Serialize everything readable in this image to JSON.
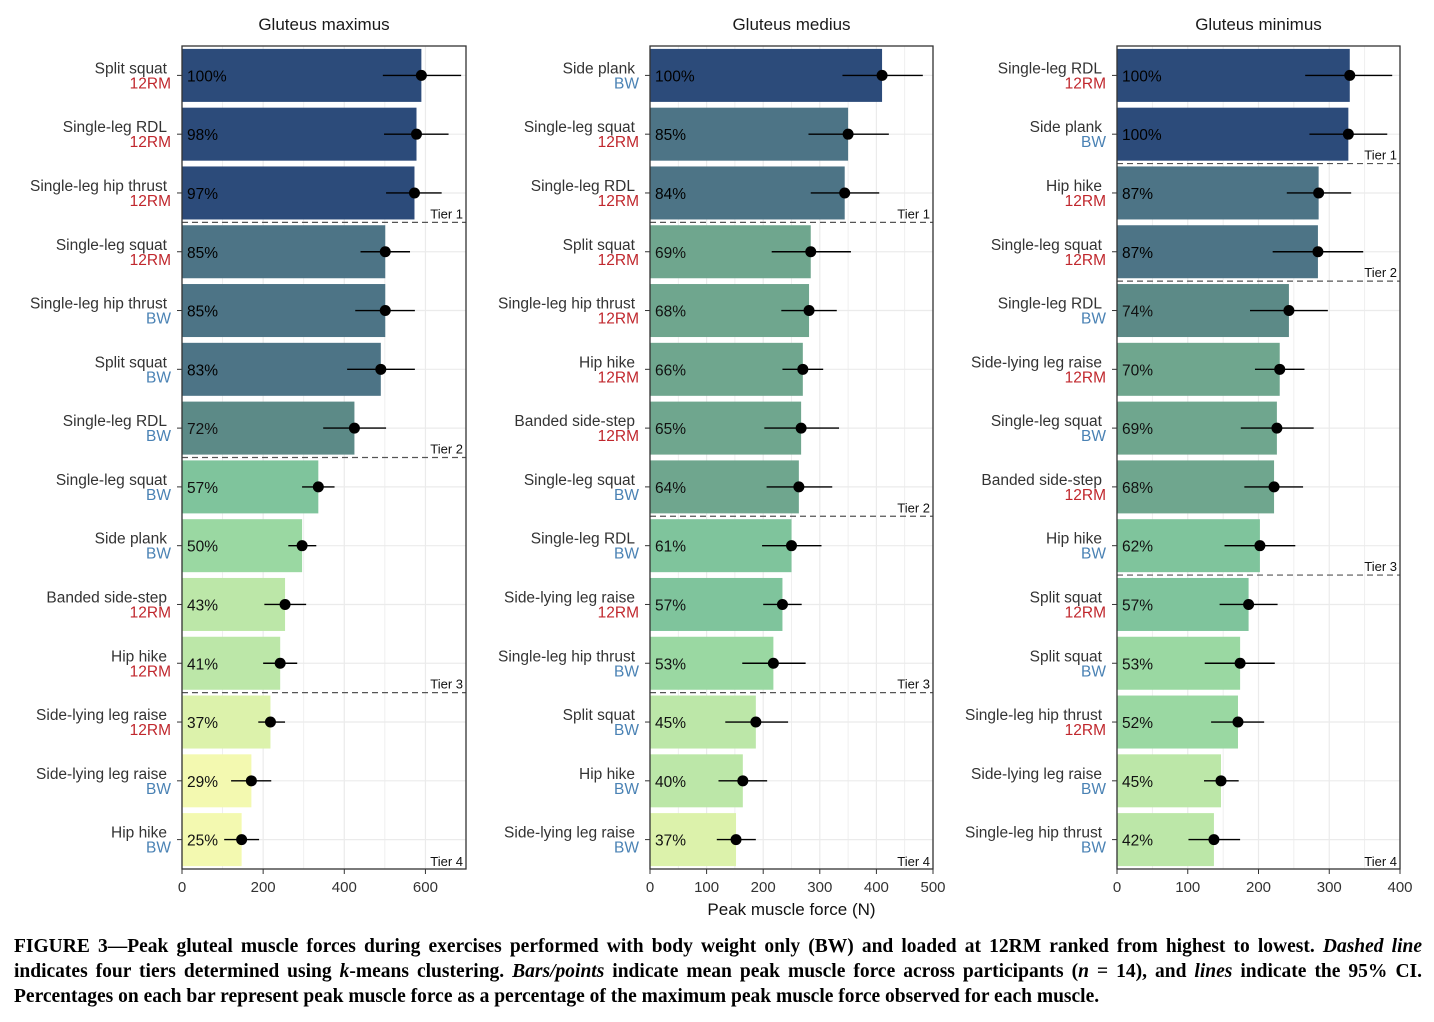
{
  "chart_data": [
    {
      "type": "bar",
      "title": "Gluteus maximus",
      "xlim": [
        0,
        700
      ],
      "xticks": [
        0,
        200,
        400,
        600
      ],
      "grid": true,
      "rows": [
        {
          "exercise": "Split squat",
          "load": "12RM",
          "mean": 590,
          "ci_low": 495,
          "ci_high": 688,
          "pct": "100%",
          "tier": 1
        },
        {
          "exercise": "Single-leg RDL",
          "load": "12RM",
          "mean": 578,
          "ci_low": 498,
          "ci_high": 657,
          "pct": "98%",
          "tier": 1
        },
        {
          "exercise": "Single-leg hip thrust",
          "load": "12RM",
          "mean": 573,
          "ci_low": 503,
          "ci_high": 640,
          "pct": "97%",
          "tier": 1
        },
        {
          "exercise": "Single-leg squat",
          "load": "12RM",
          "mean": 501,
          "ci_low": 440,
          "ci_high": 562,
          "pct": "85%",
          "tier": 2
        },
        {
          "exercise": "Single-leg hip thrust",
          "load": "BW",
          "mean": 501,
          "ci_low": 427,
          "ci_high": 574,
          "pct": "85%",
          "tier": 2
        },
        {
          "exercise": "Split squat",
          "load": "BW",
          "mean": 490,
          "ci_low": 407,
          "ci_high": 574,
          "pct": "83%",
          "tier": 2
        },
        {
          "exercise": "Single-leg RDL",
          "load": "BW",
          "mean": 425,
          "ci_low": 348,
          "ci_high": 503,
          "pct": "72%",
          "tier": 2
        },
        {
          "exercise": "Single-leg squat",
          "load": "BW",
          "mean": 336,
          "ci_low": 296,
          "ci_high": 376,
          "pct": "57%",
          "tier": 3
        },
        {
          "exercise": "Side plank",
          "load": "BW",
          "mean": 296,
          "ci_low": 262,
          "ci_high": 331,
          "pct": "50%",
          "tier": 3
        },
        {
          "exercise": "Banded side-step",
          "load": "12RM",
          "mean": 254,
          "ci_low": 203,
          "ci_high": 306,
          "pct": "43%",
          "tier": 3
        },
        {
          "exercise": "Hip hike",
          "load": "12RM",
          "mean": 242,
          "ci_low": 200,
          "ci_high": 284,
          "pct": "41%",
          "tier": 3
        },
        {
          "exercise": "Side-lying leg raise",
          "load": "12RM",
          "mean": 218,
          "ci_low": 188,
          "ci_high": 254,
          "pct": "37%",
          "tier": 4
        },
        {
          "exercise": "Side-lying leg raise",
          "load": "BW",
          "mean": 171,
          "ci_low": 121,
          "ci_high": 220,
          "pct": "29%",
          "tier": 4
        },
        {
          "exercise": "Hip hike",
          "load": "BW",
          "mean": 147,
          "ci_low": 104,
          "ci_high": 190,
          "pct": "25%",
          "tier": 4
        }
      ],
      "tier_labels": [
        "Tier 1",
        "Tier 2",
        "Tier 3",
        "Tier 4"
      ],
      "tier_breaks_after_row": [
        2,
        6,
        10
      ]
    },
    {
      "type": "bar",
      "title": "Gluteus medius",
      "xlabel": "Peak muscle force (N)",
      "xlim": [
        0,
        500
      ],
      "xticks": [
        0,
        100,
        200,
        300,
        400,
        500
      ],
      "grid": true,
      "rows": [
        {
          "exercise": "Side plank",
          "load": "BW",
          "mean": 410,
          "ci_low": 340,
          "ci_high": 482,
          "pct": "100%",
          "tier": 1
        },
        {
          "exercise": "Single-leg squat",
          "load": "12RM",
          "mean": 350,
          "ci_low": 280,
          "ci_high": 422,
          "pct": "85%",
          "tier": 1
        },
        {
          "exercise": "Single-leg RDL",
          "load": "12RM",
          "mean": 344,
          "ci_low": 284,
          "ci_high": 405,
          "pct": "84%",
          "tier": 1
        },
        {
          "exercise": "Split squat",
          "load": "12RM",
          "mean": 284,
          "ci_low": 215,
          "ci_high": 355,
          "pct": "69%",
          "tier": 2
        },
        {
          "exercise": "Single-leg hip thrust",
          "load": "12RM",
          "mean": 281,
          "ci_low": 232,
          "ci_high": 330,
          "pct": "68%",
          "tier": 2
        },
        {
          "exercise": "Hip hike",
          "load": "12RM",
          "mean": 270,
          "ci_low": 234,
          "ci_high": 306,
          "pct": "66%",
          "tier": 2
        },
        {
          "exercise": "Banded side-step",
          "load": "12RM",
          "mean": 267,
          "ci_low": 202,
          "ci_high": 334,
          "pct": "65%",
          "tier": 2
        },
        {
          "exercise": "Single-leg squat",
          "load": "BW",
          "mean": 263,
          "ci_low": 206,
          "ci_high": 322,
          "pct": "64%",
          "tier": 2
        },
        {
          "exercise": "Single-leg RDL",
          "load": "BW",
          "mean": 250,
          "ci_low": 198,
          "ci_high": 303,
          "pct": "61%",
          "tier": 3
        },
        {
          "exercise": "Side-lying leg raise",
          "load": "12RM",
          "mean": 234,
          "ci_low": 200,
          "ci_high": 268,
          "pct": "57%",
          "tier": 3
        },
        {
          "exercise": "Single-leg hip thrust",
          "load": "BW",
          "mean": 218,
          "ci_low": 163,
          "ci_high": 275,
          "pct": "53%",
          "tier": 3
        },
        {
          "exercise": "Split squat",
          "load": "BW",
          "mean": 187,
          "ci_low": 133,
          "ci_high": 244,
          "pct": "45%",
          "tier": 4
        },
        {
          "exercise": "Hip hike",
          "load": "BW",
          "mean": 164,
          "ci_low": 121,
          "ci_high": 207,
          "pct": "40%",
          "tier": 4
        },
        {
          "exercise": "Side-lying leg raise",
          "load": "BW",
          "mean": 152,
          "ci_low": 118,
          "ci_high": 187,
          "pct": "37%",
          "tier": 4
        }
      ],
      "tier_labels": [
        "Tier 1",
        "Tier 2",
        "Tier 3",
        "Tier 4"
      ],
      "tier_breaks_after_row": [
        2,
        7,
        10
      ]
    },
    {
      "type": "bar",
      "title": "Gluteus minimus",
      "xlim": [
        0,
        400
      ],
      "xticks": [
        0,
        100,
        200,
        300,
        400
      ],
      "grid": true,
      "rows": [
        {
          "exercise": "Single-leg RDL",
          "load": "12RM",
          "mean": 329,
          "ci_low": 266,
          "ci_high": 389,
          "pct": "100%",
          "tier": 1
        },
        {
          "exercise": "Side plank",
          "load": "BW",
          "mean": 327,
          "ci_low": 272,
          "ci_high": 382,
          "pct": "100%",
          "tier": 1
        },
        {
          "exercise": "Hip hike",
          "load": "12RM",
          "mean": 285,
          "ci_low": 240,
          "ci_high": 331,
          "pct": "87%",
          "tier": 2
        },
        {
          "exercise": "Single-leg squat",
          "load": "12RM",
          "mean": 284,
          "ci_low": 220,
          "ci_high": 348,
          "pct": "87%",
          "tier": 2
        },
        {
          "exercise": "Single-leg RDL",
          "load": "BW",
          "mean": 243,
          "ci_low": 188,
          "ci_high": 298,
          "pct": "74%",
          "tier": 3
        },
        {
          "exercise": "Side-lying leg raise",
          "load": "12RM",
          "mean": 230,
          "ci_low": 195,
          "ci_high": 265,
          "pct": "70%",
          "tier": 3
        },
        {
          "exercise": "Single-leg squat",
          "load": "BW",
          "mean": 226,
          "ci_low": 175,
          "ci_high": 278,
          "pct": "69%",
          "tier": 3
        },
        {
          "exercise": "Banded side-step",
          "load": "12RM",
          "mean": 222,
          "ci_low": 180,
          "ci_high": 263,
          "pct": "68%",
          "tier": 3
        },
        {
          "exercise": "Hip hike",
          "load": "BW",
          "mean": 202,
          "ci_low": 152,
          "ci_high": 252,
          "pct": "62%",
          "tier": 3
        },
        {
          "exercise": "Split squat",
          "load": "12RM",
          "mean": 186,
          "ci_low": 145,
          "ci_high": 227,
          "pct": "57%",
          "tier": 4
        },
        {
          "exercise": "Split squat",
          "load": "BW",
          "mean": 174,
          "ci_low": 124,
          "ci_high": 223,
          "pct": "53%",
          "tier": 4
        },
        {
          "exercise": "Single-leg hip thrust",
          "load": "12RM",
          "mean": 171,
          "ci_low": 133,
          "ci_high": 208,
          "pct": "52%",
          "tier": 4
        },
        {
          "exercise": "Side-lying leg raise",
          "load": "BW",
          "mean": 147,
          "ci_low": 123,
          "ci_high": 172,
          "pct": "45%",
          "tier": 4
        },
        {
          "exercise": "Single-leg hip thrust",
          "load": "BW",
          "mean": 137,
          "ci_low": 101,
          "ci_high": 174,
          "pct": "42%",
          "tier": 4
        }
      ],
      "tier_labels": [
        "Tier 1",
        "Tier 2",
        "Tier 3",
        "Tier 4"
      ],
      "tier_breaks_after_row": [
        1,
        3,
        8
      ]
    }
  ],
  "colors": {
    "load_12rm": "#c0272d",
    "load_bw": "#4a82b4",
    "gridline": "#ebebeb",
    "panel_border": "#333333",
    "tier_line": "#555555",
    "bar_scale": [
      "#2c4b7a",
      "#3a5f85",
      "#4d7486",
      "#5c8a87",
      "#6fa68e",
      "#7fc49c",
      "#9ad8a2",
      "#bce7a8",
      "#dcf2ab",
      "#f3f9b0"
    ]
  },
  "caption": {
    "label": "FIGURE 3—",
    "line1": "Peak gluteal muscle forces during exercises performed with body weight only (BW) and loaded at 12RM ranked from highest to lowest.",
    "seg_dashed": "Dashed line",
    "seg_tiers_a": " indicates four tiers determined using ",
    "seg_k": "k",
    "seg_tiers_b": "-means clustering. ",
    "seg_bars": "Bars/points",
    "seg_mean": " indicate mean peak muscle force across participants (",
    "seg_n": "n",
    "seg_n_eq": " = 14), and ",
    "seg_lines": "lines",
    "seg_ci": " indicate the 95% CI. Percentages on each bar represent peak muscle force as a percentage of the maximum peak muscle force observed for each muscle."
  }
}
